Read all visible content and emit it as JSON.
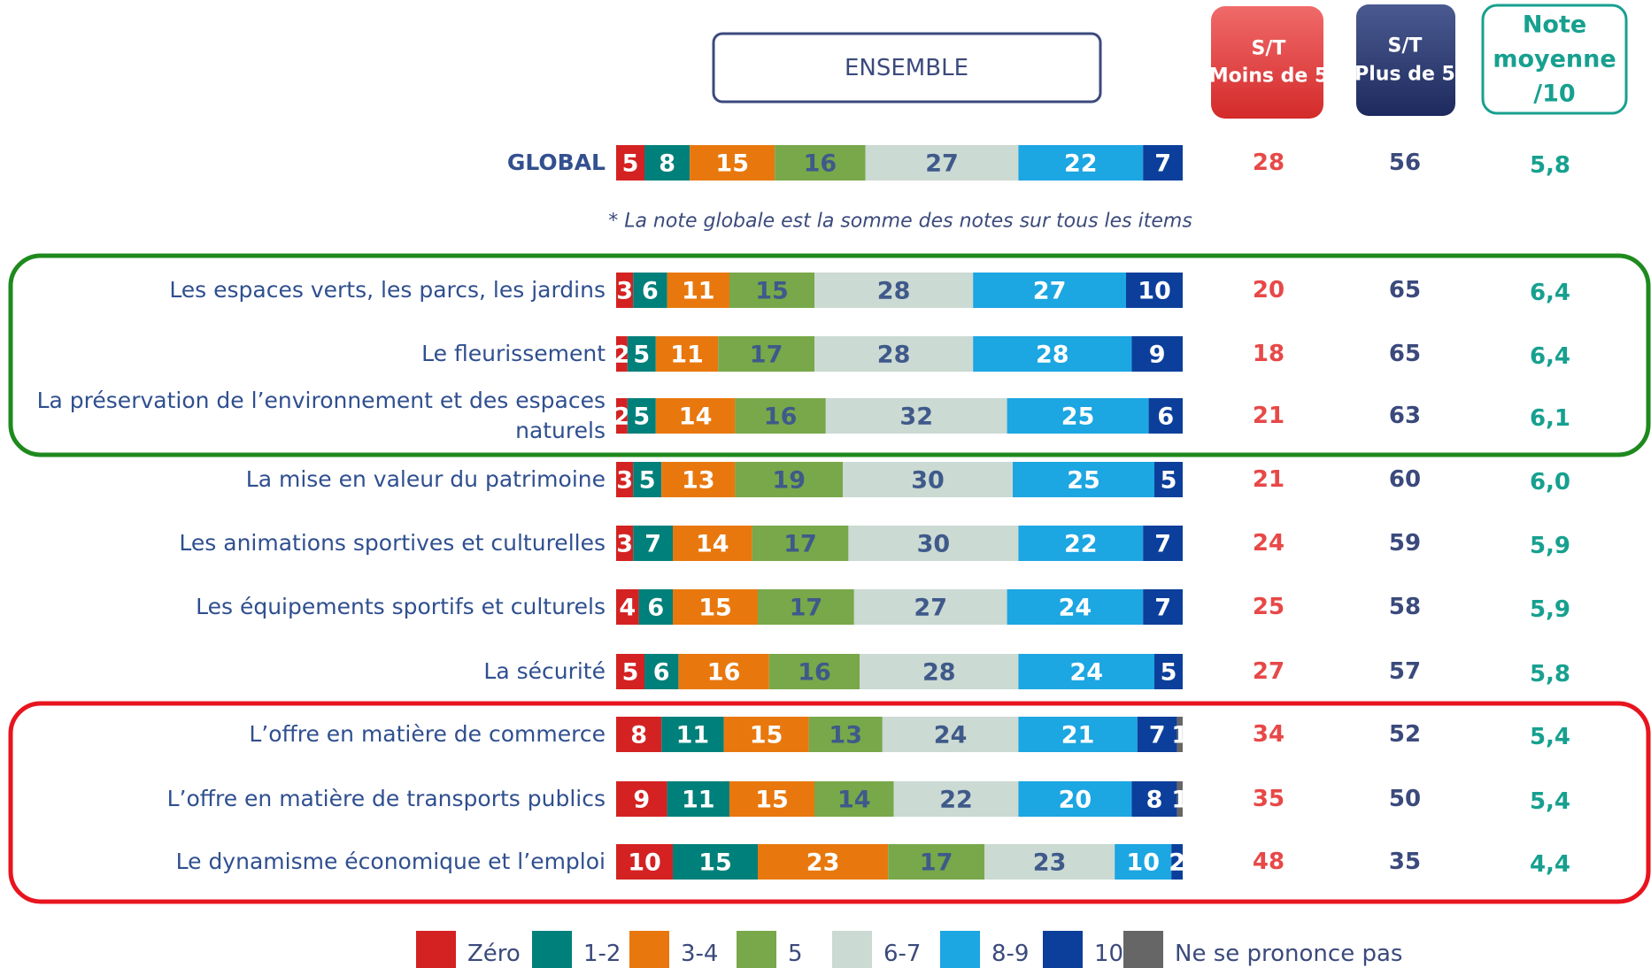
{
  "chart_data": {
    "type": "bar",
    "orientation": "horizontal",
    "stacked": true,
    "header": "ENSEMBLE",
    "footnote": "* La note globale est la somme des notes sur tous les items",
    "xlim": [
      0,
      100
    ],
    "categories": [
      "GLOBAL",
      "Les espaces verts, les parcs, les jardins",
      "Le fleurissement",
      "La préservation de l’environnement et des espaces naturels",
      "La mise en valeur du patrimoine",
      "Les animations sportives et culturelles",
      "Les équipements sportifs et culturels",
      "La sécurité",
      "L’offre en matière de commerce",
      "L’offre en matière de transports publics",
      "Le dynamisme économique et l’emploi"
    ],
    "series": [
      {
        "name": "Zéro",
        "color": "#d42222",
        "text_color": "#ffffff",
        "values": [
          5,
          3,
          2,
          2,
          3,
          3,
          4,
          5,
          8,
          9,
          10
        ]
      },
      {
        "name": "1-2",
        "color": "#00807a",
        "text_color": "#ffffff",
        "values": [
          8,
          6,
          5,
          5,
          5,
          7,
          6,
          6,
          11,
          11,
          15
        ]
      },
      {
        "name": "3-4",
        "color": "#e8780e",
        "text_color": "#ffffff",
        "values": [
          15,
          11,
          11,
          14,
          13,
          14,
          15,
          16,
          15,
          15,
          23
        ]
      },
      {
        "name": "5",
        "color": "#78a84a",
        "text_color": "#3f5a8a",
        "values": [
          16,
          15,
          17,
          16,
          19,
          17,
          17,
          16,
          13,
          14,
          17
        ]
      },
      {
        "name": "6-7",
        "color": "#cbdad3",
        "text_color": "#3f5a8a",
        "values": [
          27,
          28,
          28,
          32,
          30,
          30,
          27,
          28,
          24,
          22,
          23
        ]
      },
      {
        "name": "8-9",
        "color": "#1ca6e2",
        "text_color": "#ffffff",
        "values": [
          22,
          27,
          28,
          25,
          25,
          22,
          24,
          24,
          21,
          20,
          10
        ]
      },
      {
        "name": "10",
        "color": "#0c3f9b",
        "text_color": "#ffffff",
        "values": [
          7,
          10,
          9,
          6,
          5,
          7,
          7,
          5,
          7,
          8,
          2
        ]
      },
      {
        "name": "Ne se prononce pas",
        "color": "#666666",
        "text_color": "#ffffff",
        "values": [
          null,
          null,
          null,
          null,
          null,
          null,
          null,
          null,
          1,
          1,
          null
        ]
      }
    ],
    "columns": [
      {
        "title": [
          "S/T",
          "Moins de 5"
        ],
        "color": "#e84848",
        "values": [
          28,
          20,
          18,
          21,
          21,
          24,
          25,
          27,
          34,
          35,
          48
        ]
      },
      {
        "title": [
          "S/T",
          "Plus de 5"
        ],
        "color": "#3b4a7c",
        "values": [
          56,
          65,
          65,
          63,
          60,
          59,
          58,
          57,
          52,
          50,
          35
        ]
      },
      {
        "title": [
          "Note",
          "moyenne",
          "/10"
        ],
        "color": "#17a08f",
        "values": [
          5.8,
          6.4,
          6.4,
          6.1,
          6.0,
          5.9,
          5.9,
          5.8,
          5.4,
          5.4,
          4.4
        ],
        "value_labels": [
          "5,8",
          "6,4",
          "6,4",
          "6,1",
          "6,0",
          "5,9",
          "5,9",
          "5,8",
          "5,4",
          "5,4",
          "4,4"
        ]
      }
    ]
  }
}
